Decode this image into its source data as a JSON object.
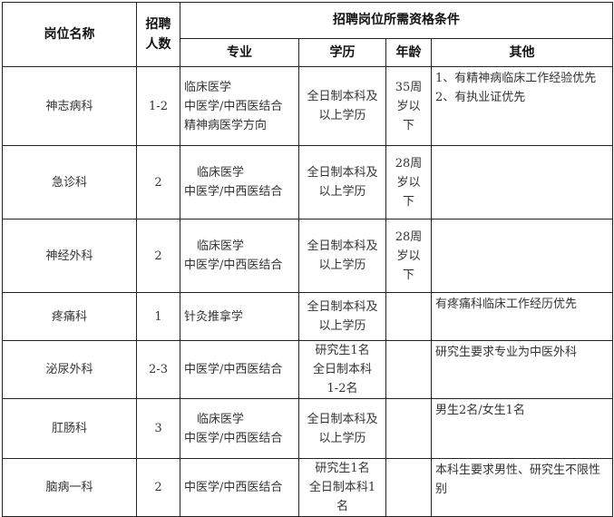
{
  "header": {
    "position": "岗位名称",
    "count": "招聘人数",
    "requirements": "招聘岗位所需资格条件",
    "major": "专业",
    "education": "学历",
    "age": "年龄",
    "other": "其他"
  },
  "rows": [
    {
      "position": "神志病科",
      "count": "1-2",
      "major": [
        "临床医学",
        "中医学/中西医结合",
        "精神病医学方向"
      ],
      "education": [
        "全日制本科及",
        "以上学历"
      ],
      "age": [
        "35周",
        "岁以",
        "下"
      ],
      "other": [
        "1、有精神病临床工作经验优先",
        "2、有执业证优先"
      ]
    },
    {
      "position": "急诊科",
      "count": "2",
      "major": [
        "临床医学",
        "中医学/中西医结合"
      ],
      "education": [
        "全日制本科及",
        "以上学历"
      ],
      "age": [
        "28周",
        "岁以",
        "下"
      ],
      "other": []
    },
    {
      "position": "神经外科",
      "count": "2",
      "major": [
        "临床医学",
        "中医学/中西医结合"
      ],
      "education": [
        "全日制本科及",
        "以上学历"
      ],
      "age": [
        "28周",
        "岁以",
        "下"
      ],
      "other": []
    },
    {
      "position": "疼痛科",
      "count": "1",
      "major": [
        "针灸推拿学"
      ],
      "education": [
        "全日制本科及",
        "以上学历"
      ],
      "age": [],
      "other": [
        "有疼痛科临床工作经历优先"
      ]
    },
    {
      "position": "泌尿外科",
      "count": "2-3",
      "major": [
        "中医学/中西医结合"
      ],
      "education": [
        "研究生1名",
        "全日制本科",
        "1-2名"
      ],
      "age": [],
      "other": [
        "研究生要求专业为中医外科"
      ]
    },
    {
      "position": "肛肠科",
      "count": "3",
      "major": [
        "临床医学",
        "中医学/中西医结合"
      ],
      "education": [
        "全日制本科及",
        "以上学历"
      ],
      "age": [],
      "other": [
        "男生2名/女生1名"
      ]
    },
    {
      "position": "脑病一科",
      "count": "2",
      "major": [
        "中医学/中西医结合"
      ],
      "education": [
        "研究生1名",
        "全日制本科1",
        "名"
      ],
      "age": [],
      "other": [
        "本科生要求男性、研究生不限性别"
      ]
    }
  ]
}
